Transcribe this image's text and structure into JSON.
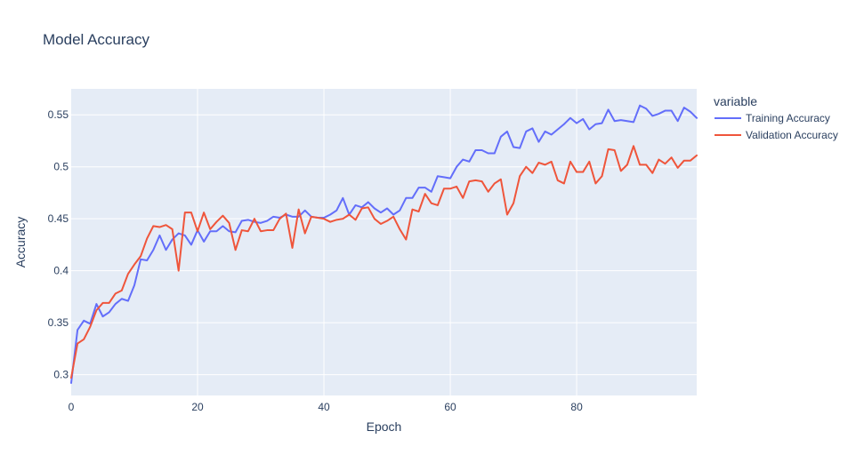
{
  "chart_data": {
    "type": "line",
    "title": "Model Accuracy",
    "xlabel": "Epoch",
    "ylabel": "Accuracy",
    "xlim": [
      0,
      99
    ],
    "ylim": [
      0.28,
      0.575
    ],
    "x_ticks": [
      0,
      20,
      40,
      60,
      80
    ],
    "x_tick_labels": [
      "0",
      "20",
      "40",
      "60",
      "80"
    ],
    "y_ticks": [
      0.3,
      0.35,
      0.4,
      0.45,
      0.5,
      0.55
    ],
    "y_tick_labels": [
      "0.3",
      "0.35",
      "0.4",
      "0.45",
      "0.5",
      "0.55"
    ],
    "grid": true,
    "legend": {
      "title": "variable",
      "placement": "right"
    },
    "series": [
      {
        "name": "Training Accuracy",
        "color": "#636efa",
        "values": [
          0.292,
          0.343,
          0.352,
          0.349,
          0.368,
          0.356,
          0.36,
          0.368,
          0.373,
          0.371,
          0.386,
          0.411,
          0.41,
          0.42,
          0.434,
          0.42,
          0.43,
          0.436,
          0.434,
          0.425,
          0.439,
          0.428,
          0.438,
          0.438,
          0.443,
          0.438,
          0.437,
          0.448,
          0.449,
          0.447,
          0.446,
          0.448,
          0.452,
          0.451,
          0.454,
          0.452,
          0.452,
          0.458,
          0.452,
          0.451,
          0.451,
          0.454,
          0.458,
          0.47,
          0.454,
          0.463,
          0.461,
          0.466,
          0.46,
          0.456,
          0.46,
          0.454,
          0.458,
          0.47,
          0.47,
          0.48,
          0.48,
          0.476,
          0.491,
          0.49,
          0.489,
          0.5,
          0.507,
          0.505,
          0.516,
          0.516,
          0.513,
          0.513,
          0.529,
          0.534,
          0.519,
          0.518,
          0.534,
          0.537,
          0.524,
          0.534,
          0.531,
          0.536,
          0.541,
          0.547,
          0.542,
          0.546,
          0.536,
          0.541,
          0.542,
          0.555,
          0.544,
          0.545,
          0.544,
          0.543,
          0.559,
          0.556,
          0.549,
          0.551,
          0.554,
          0.554,
          0.544,
          0.557,
          0.553,
          0.547
        ]
      },
      {
        "name": "Validation Accuracy",
        "color": "#ef553b",
        "values": [
          0.297,
          0.33,
          0.334,
          0.346,
          0.362,
          0.369,
          0.369,
          0.378,
          0.381,
          0.397,
          0.406,
          0.414,
          0.431,
          0.443,
          0.442,
          0.444,
          0.44,
          0.4,
          0.456,
          0.456,
          0.438,
          0.456,
          0.44,
          0.447,
          0.453,
          0.446,
          0.42,
          0.439,
          0.438,
          0.45,
          0.438,
          0.439,
          0.439,
          0.45,
          0.455,
          0.422,
          0.459,
          0.436,
          0.452,
          0.451,
          0.45,
          0.447,
          0.449,
          0.45,
          0.454,
          0.449,
          0.46,
          0.461,
          0.45,
          0.445,
          0.448,
          0.452,
          0.44,
          0.43,
          0.459,
          0.457,
          0.474,
          0.465,
          0.463,
          0.479,
          0.479,
          0.481,
          0.47,
          0.486,
          0.487,
          0.486,
          0.476,
          0.484,
          0.488,
          0.454,
          0.465,
          0.491,
          0.5,
          0.494,
          0.504,
          0.502,
          0.505,
          0.487,
          0.484,
          0.505,
          0.495,
          0.495,
          0.505,
          0.484,
          0.491,
          0.517,
          0.516,
          0.496,
          0.502,
          0.52,
          0.502,
          0.502,
          0.494,
          0.507,
          0.503,
          0.509,
          0.499,
          0.506,
          0.506,
          0.511
        ]
      }
    ]
  }
}
